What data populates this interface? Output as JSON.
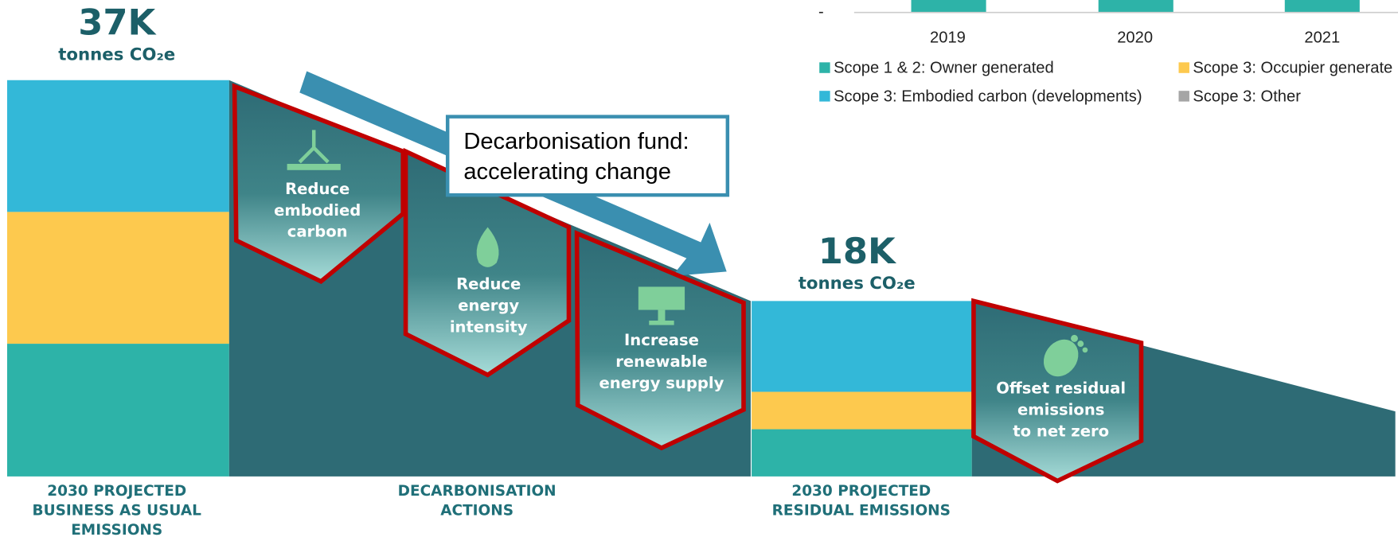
{
  "left_total": {
    "value": "37K",
    "unit": "tonnes CO₂e"
  },
  "right_total": {
    "value": "18K",
    "unit": "tonnes CO₂e"
  },
  "captions": [
    [
      "2030 PROJECTED",
      "BUSINESS AS USUAL",
      "EMISSIONS"
    ],
    [
      "DECARBONISATION",
      "ACTIONS"
    ],
    [
      "2030 PROJECTED",
      "RESIDUAL EMISSIONS"
    ]
  ],
  "actions": [
    [
      "Reduce",
      "embodied",
      "carbon"
    ],
    [
      "Reduce",
      "energy",
      "intensity"
    ],
    [
      "Increase",
      "renewable",
      "energy supply"
    ],
    [
      "Offset residual",
      "emissions",
      "to net zero"
    ]
  ],
  "callout": [
    "Decarbonisation fund:",
    "accelerating change"
  ],
  "inset": {
    "axis_label": "-",
    "years": [
      "2019",
      "2020",
      "2021"
    ],
    "legend": [
      "Scope 1 & 2: Owner generated",
      "Scope 3: Occupier generate",
      "Scope 3: Embodied carbon (developments)",
      "Scope 3: Other"
    ]
  }
}
